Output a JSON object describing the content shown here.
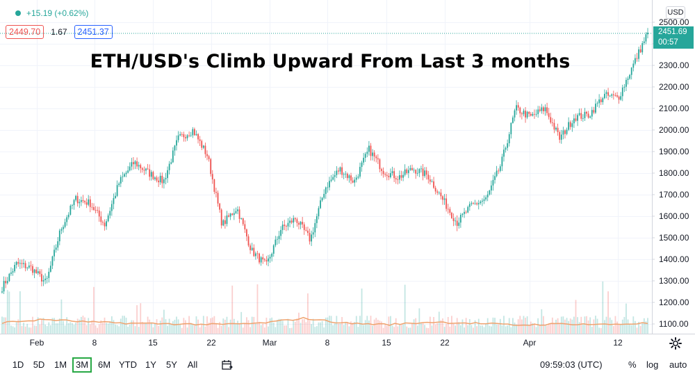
{
  "legend": {
    "change": "+15.19 (+0.62%)"
  },
  "quote": {
    "bid": "2449.70",
    "spread": "1.67",
    "ask": "2451.37"
  },
  "currency": "USD",
  "last_price": {
    "value": "2451.69",
    "countdown": "00:57"
  },
  "toolbar": {
    "ranges": [
      "1D",
      "5D",
      "1M",
      "3M",
      "6M",
      "YTD",
      "1Y",
      "5Y",
      "All"
    ],
    "active_range": "3M",
    "time": "09:59:03 (UTC)",
    "percent": "%",
    "log": "log",
    "auto": "auto"
  },
  "icons": [
    "dot-icon",
    "calendar-icon",
    "settings-icon"
  ],
  "colors": {
    "up": "#26a69a",
    "down": "#ef5350",
    "volume_ma": "#f0a36e",
    "ask": "#2962ff"
  },
  "chart_data": {
    "type": "candlestick",
    "title": "ETH/USD's Climb Upward From Last 3 months",
    "x_tick_labels": [
      "Feb",
      "8",
      "15",
      "22",
      "Mar",
      "8",
      "15",
      "22",
      "Apr",
      "12"
    ],
    "y_tick_labels": [
      "2500.00",
      "2400.00",
      "2300.00",
      "2200.00",
      "2100.00",
      "2000.00",
      "1900.00",
      "1800.00",
      "1700.00",
      "1600.00",
      "1500.00",
      "1400.00",
      "1300.00",
      "1200.00",
      "1100.00"
    ],
    "y_tick_values": [
      2500,
      2400,
      2300,
      2200,
      2100,
      2000,
      1900,
      1800,
      1700,
      1600,
      1500,
      1400,
      1300,
      1200,
      1100
    ],
    "ylim": [
      1060,
      2520
    ],
    "last_price": 2451.69,
    "grid": true,
    "price_path": [
      {
        "date": "Jan 27",
        "close": 1270
      },
      {
        "date": "Jan 29",
        "close": 1380
      },
      {
        "date": "Jan 31",
        "close": 1360
      },
      {
        "date": "Feb 1",
        "close": 1290
      },
      {
        "date": "Feb 3",
        "close": 1540
      },
      {
        "date": "Feb 5",
        "close": 1680
      },
      {
        "date": "Feb 7",
        "close": 1660
      },
      {
        "date": "Feb 8",
        "close": 1560
      },
      {
        "date": "Feb 10",
        "close": 1760
      },
      {
        "date": "Feb 13",
        "close": 1850
      },
      {
        "date": "Feb 15",
        "close": 1800
      },
      {
        "date": "Feb 17",
        "close": 1760
      },
      {
        "date": "Feb 19",
        "close": 1960
      },
      {
        "date": "Feb 20",
        "close": 2000
      },
      {
        "date": "Feb 22",
        "close": 1880
      },
      {
        "date": "Feb 23",
        "close": 1560
      },
      {
        "date": "Feb 24",
        "close": 1640
      },
      {
        "date": "Feb 26",
        "close": 1440
      },
      {
        "date": "Feb 28",
        "close": 1370
      },
      {
        "date": "Mar 2",
        "close": 1540
      },
      {
        "date": "Mar 4",
        "close": 1590
      },
      {
        "date": "Mar 6",
        "close": 1490
      },
      {
        "date": "Mar 9",
        "close": 1730
      },
      {
        "date": "Mar 11",
        "close": 1820
      },
      {
        "date": "Mar 13",
        "close": 1760
      },
      {
        "date": "Mar 15",
        "close": 1910
      },
      {
        "date": "Mar 16",
        "close": 1810
      },
      {
        "date": "Mar 18",
        "close": 1780
      },
      {
        "date": "Mar 20",
        "close": 1820
      },
      {
        "date": "Mar 23",
        "close": 1790
      },
      {
        "date": "Mar 24",
        "close": 1680
      },
      {
        "date": "Mar 25",
        "close": 1570
      },
      {
        "date": "Mar 27",
        "close": 1650
      },
      {
        "date": "Mar 29",
        "close": 1680
      },
      {
        "date": "Mar 31",
        "close": 1840
      },
      {
        "date": "Apr 2",
        "close": 2100
      },
      {
        "date": "Apr 4",
        "close": 2060
      },
      {
        "date": "Apr 6",
        "close": 2100
      },
      {
        "date": "Apr 7",
        "close": 1960
      },
      {
        "date": "Apr 8",
        "close": 2060
      },
      {
        "date": "Apr 9",
        "close": 2070
      },
      {
        "date": "Apr 10",
        "close": 2160
      },
      {
        "date": "Apr 12",
        "close": 2150
      },
      {
        "date": "Apr 13",
        "close": 2300
      },
      {
        "date": "Apr 14",
        "close": 2451.69
      }
    ],
    "volume_ma_levels": [
      0.55,
      0.8,
      0.6,
      0.5,
      0.45,
      0.4,
      0.5,
      0.9,
      0.5,
      0.4,
      0.6,
      0.5,
      0.35,
      0.45,
      0.4,
      0.5
    ]
  }
}
